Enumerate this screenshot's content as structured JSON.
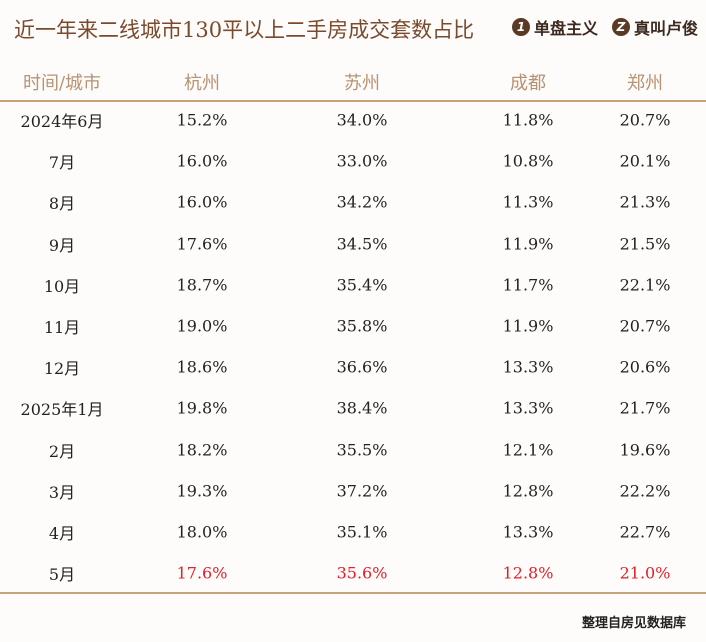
{
  "header": {
    "title": "近一年来二线城市130平以上二手房成交套数占比",
    "logos": [
      "单盘主义",
      "真叫卢俊"
    ],
    "logo_icons": [
      "1",
      "Z"
    ]
  },
  "table": {
    "columns": [
      "时间/城市",
      "杭州",
      "苏州",
      "成都",
      "郑州"
    ],
    "rows": [
      [
        "2024年6月",
        "15.2%",
        "34.0%",
        "11.8%",
        "20.7%"
      ],
      [
        "7月",
        "16.0%",
        "33.0%",
        "10.8%",
        "20.1%"
      ],
      [
        "8月",
        "16.0%",
        "34.2%",
        "11.3%",
        "21.3%"
      ],
      [
        "9月",
        "17.6%",
        "34.5%",
        "11.9%",
        "21.5%"
      ],
      [
        "10月",
        "18.7%",
        "35.4%",
        "11.7%",
        "22.1%"
      ],
      [
        "11月",
        "19.0%",
        "35.8%",
        "11.9%",
        "20.7%"
      ],
      [
        "12月",
        "18.6%",
        "36.6%",
        "13.3%",
        "20.6%"
      ],
      [
        "2025年1月",
        "19.8%",
        "38.4%",
        "13.3%",
        "21.7%"
      ],
      [
        "2月",
        "18.2%",
        "35.5%",
        "12.1%",
        "19.6%"
      ],
      [
        "3月",
        "19.3%",
        "37.2%",
        "12.8%",
        "22.2%"
      ],
      [
        "4月",
        "18.0%",
        "35.1%",
        "13.3%",
        "22.7%"
      ],
      [
        "5月",
        "17.6%",
        "35.6%",
        "12.8%",
        "21.0%"
      ]
    ]
  },
  "footer": "整理自房见数据库"
}
